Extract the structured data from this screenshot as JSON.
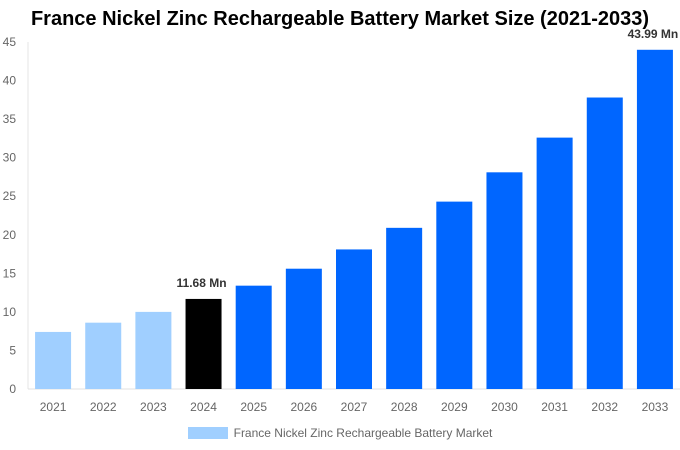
{
  "chart_data": {
    "type": "bar",
    "title": "France Nickel Zinc Rechargeable Battery Market Size (2021-2033)",
    "categories": [
      "2021",
      "2022",
      "2023",
      "2024",
      "2025",
      "2026",
      "2027",
      "2028",
      "2029",
      "2030",
      "2031",
      "2032",
      "2033"
    ],
    "series": [
      {
        "name": "France Nickel Zinc Rechargeable Battery Market",
        "values": [
          7.4,
          8.6,
          10.0,
          11.68,
          13.4,
          15.6,
          18.1,
          20.9,
          24.3,
          28.1,
          32.6,
          37.8,
          43.99
        ]
      }
    ],
    "bar_colors": [
      "#a0cfff",
      "#a0cfff",
      "#a0cfff",
      "#000000",
      "#0066ff",
      "#0066ff",
      "#0066ff",
      "#0066ff",
      "#0066ff",
      "#0066ff",
      "#0066ff",
      "#0066ff",
      "#0066ff"
    ],
    "legend_color": "#a0cfff",
    "data_labels": [
      {
        "index": 3,
        "text": "11.68 Mn"
      },
      {
        "index": 12,
        "text": "43.99 Mn"
      }
    ],
    "ylim": [
      0,
      45
    ],
    "yticks": [
      0,
      5,
      10,
      15,
      20,
      25,
      30,
      35,
      40,
      45
    ],
    "xlabel": "",
    "ylabel": "",
    "grid": false,
    "legend_position": "bottom"
  }
}
